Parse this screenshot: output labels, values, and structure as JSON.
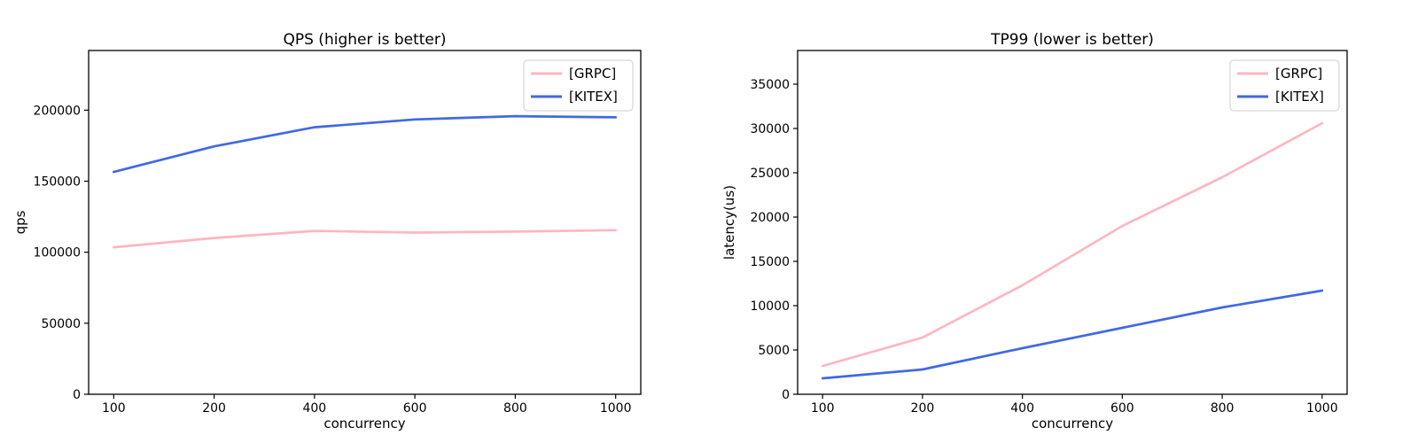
{
  "figure": {
    "background": "#ffffff",
    "text_color": "#000000",
    "spine_color": "#000000",
    "legend_border_color": "#cccccc",
    "legend_background": "#ffffff"
  },
  "chart_data": [
    {
      "id": "qps-chart",
      "type": "line",
      "title": "QPS (higher is better)",
      "xlabel": "concurrency",
      "ylabel": "qps",
      "categories": [
        "100",
        "200",
        "400",
        "600",
        "800",
        "1000"
      ],
      "series": [
        {
          "name": "[GRPC]",
          "color": "#FFB6C1",
          "values": [
            103500,
            110000,
            115000,
            113800,
            114500,
            115500
          ]
        },
        {
          "name": "[KITEX]",
          "color": "#4169E1",
          "values": [
            156500,
            174500,
            188000,
            193500,
            195800,
            195000
          ]
        }
      ],
      "yticks": [
        0,
        50000,
        100000,
        150000,
        200000
      ],
      "ylim": [
        0,
        242000
      ],
      "grid": false,
      "legend": {
        "position": "upper right",
        "labels": [
          "[GRPC]",
          "[KITEX]"
        ]
      }
    },
    {
      "id": "tp99-chart",
      "type": "line",
      "title": "TP99 (lower is better)",
      "xlabel": "concurrency",
      "ylabel": "latency(us)",
      "categories": [
        "100",
        "200",
        "400",
        "600",
        "800",
        "1000"
      ],
      "series": [
        {
          "name": "[GRPC]",
          "color": "#FFB6C1",
          "values": [
            3200,
            6400,
            12300,
            19000,
            24500,
            30600
          ]
        },
        {
          "name": "[KITEX]",
          "color": "#4169E1",
          "values": [
            1800,
            2800,
            5200,
            7500,
            9800,
            11700
          ]
        }
      ],
      "yticks": [
        0,
        5000,
        10000,
        15000,
        20000,
        25000,
        30000,
        35000
      ],
      "ylim": [
        0,
        38800
      ],
      "grid": false,
      "legend": {
        "position": "upper right",
        "labels": [
          "[GRPC]",
          "[KITEX]"
        ]
      }
    }
  ]
}
